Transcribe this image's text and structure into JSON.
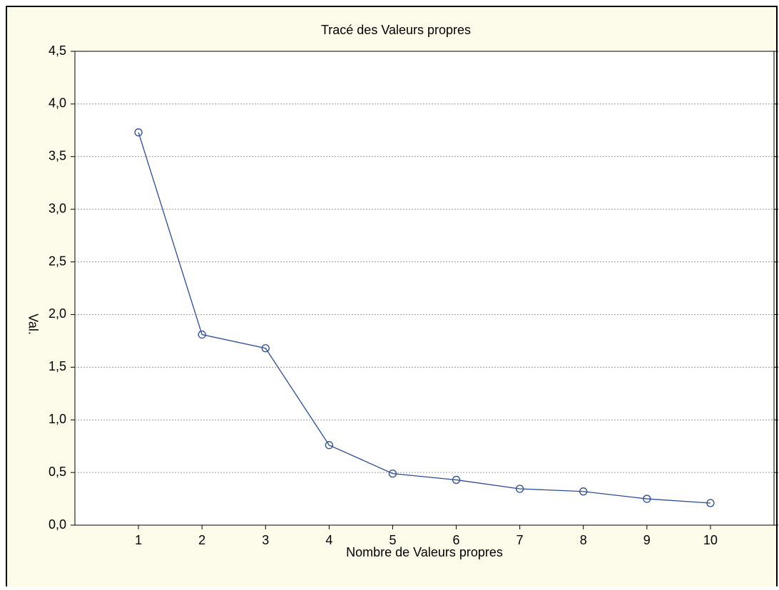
{
  "chart_data": {
    "type": "line",
    "title": "Tracé des Valeurs propres",
    "xlabel": "Nombre de Valeurs propres",
    "ylabel": "Val.",
    "x": [
      1,
      2,
      3,
      4,
      5,
      6,
      7,
      8,
      9,
      10
    ],
    "values": [
      3.73,
      1.81,
      1.68,
      0.76,
      0.49,
      0.43,
      0.345,
      0.32,
      0.25,
      0.21
    ],
    "color": "#2b4c9b",
    "xlim": [
      0,
      11
    ],
    "xticks": [
      1,
      2,
      3,
      4,
      5,
      6,
      7,
      8,
      9,
      10
    ],
    "ylim": [
      0,
      4.5
    ],
    "yticks": [
      {
        "value": 0,
        "label": "0,0"
      },
      {
        "value": 0.5,
        "label": "0,5"
      },
      {
        "value": 1,
        "label": "1,0"
      },
      {
        "value": 1.5,
        "label": "1,5"
      },
      {
        "value": 2,
        "label": "2,0"
      },
      {
        "value": 2.5,
        "label": "2,5"
      },
      {
        "value": 3,
        "label": "3,0"
      },
      {
        "value": 3.5,
        "label": "3,5"
      },
      {
        "value": 4,
        "label": "4,0"
      },
      {
        "value": 4.5,
        "label": "4,5"
      }
    ],
    "grid": true
  }
}
